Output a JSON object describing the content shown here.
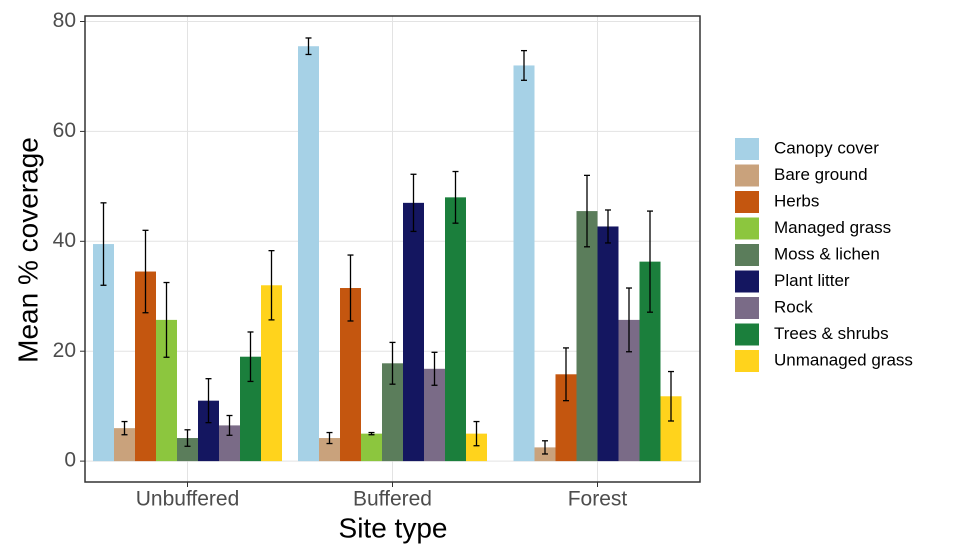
{
  "chart_data": {
    "type": "bar",
    "x_label": "Site type",
    "y_label": "Mean % coverage",
    "categories": [
      "Unbuffered",
      "Buffered",
      "Forest"
    ],
    "ylim": [
      -3.8,
      81
    ],
    "yticks": [
      0,
      20,
      40,
      60,
      80
    ],
    "grid": true,
    "legend": "right",
    "series": [
      {
        "name": "Canopy cover",
        "color": "#a6d1e6",
        "values": [
          39.5,
          75.5,
          72
        ],
        "errors": [
          7.5,
          1.5,
          2.7
        ]
      },
      {
        "name": "Bare ground",
        "color": "#c9a27c",
        "values": [
          6,
          4.2,
          2.5
        ],
        "errors": [
          1.2,
          1,
          1.2
        ]
      },
      {
        "name": "Herbs",
        "color": "#c4560f",
        "values": [
          34.5,
          31.5,
          15.8
        ],
        "errors": [
          7.5,
          6,
          4.8
        ]
      },
      {
        "name": "Managed grass",
        "color": "#8cc63e",
        "values": [
          25.7,
          5,
          null
        ],
        "errors": [
          6.8,
          0.2,
          null
        ]
      },
      {
        "name": "Moss & lichen",
        "color": "#5b7d5b",
        "values": [
          4.2,
          17.8,
          45.5
        ],
        "errors": [
          1.5,
          3.8,
          6.5
        ]
      },
      {
        "name": "Plant litter",
        "color": "#141660",
        "values": [
          11,
          47,
          42.7
        ],
        "errors": [
          4,
          5.2,
          3
        ]
      },
      {
        "name": "Rock",
        "color": "#7a6b87",
        "values": [
          6.5,
          16.8,
          25.7
        ],
        "errors": [
          1.8,
          3,
          5.8
        ]
      },
      {
        "name": "Trees & shrubs",
        "color": "#1b7f3c",
        "values": [
          19,
          48,
          36.3
        ],
        "errors": [
          4.5,
          4.7,
          9.2
        ]
      },
      {
        "name": "Unmanaged grass",
        "color": "#ffd31c",
        "values": [
          32,
          5,
          11.8
        ],
        "errors": [
          6.3,
          2.2,
          4.5
        ]
      }
    ]
  }
}
